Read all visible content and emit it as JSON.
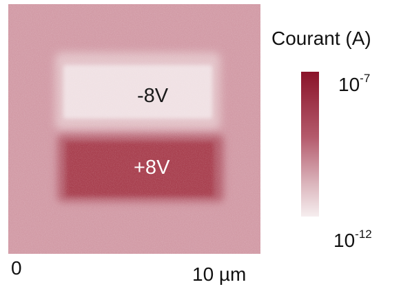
{
  "image": {
    "zones": {
      "negative_label": "-8V",
      "positive_label": "+8V"
    },
    "colors": {
      "background": "#d29ba6",
      "negative_zone": "#f0e1e4",
      "positive_zone": "#a8404f",
      "colorbar_top": "#8a1329",
      "colorbar_bottom": "#f6eeef"
    }
  },
  "legend": {
    "title": "Courant (A)",
    "max_base": "10",
    "max_exp": "-7",
    "min_base": "10",
    "min_exp": "-12"
  },
  "scale": {
    "start": "0",
    "end": "10 µm"
  }
}
